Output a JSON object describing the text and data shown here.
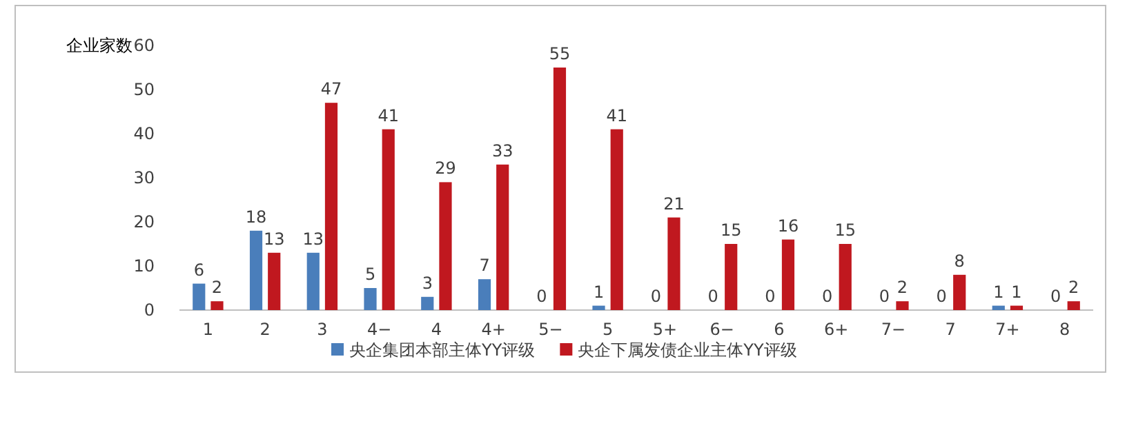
{
  "chart_data": {
    "type": "bar",
    "ylabel": "企业家数",
    "categories": [
      "1",
      "2",
      "3",
      "4−",
      "4",
      "4+",
      "5−",
      "5",
      "5+",
      "6−",
      "6",
      "6+",
      "7−",
      "7",
      "7+",
      "8"
    ],
    "series": [
      {
        "name": "央企集团本部主体YY评级",
        "color": "#4a7ebb",
        "values": [
          6,
          18,
          13,
          5,
          3,
          7,
          0,
          1,
          0,
          0,
          0,
          0,
          0,
          0,
          1,
          0
        ]
      },
      {
        "name": "央企下属发债企业主体YY评级",
        "color": "#c0181f",
        "values": [
          2,
          13,
          47,
          41,
          29,
          33,
          55,
          41,
          21,
          15,
          16,
          15,
          2,
          8,
          1,
          2
        ]
      }
    ],
    "ylim": [
      0,
      60
    ],
    "yticks": [
      0,
      10,
      20,
      30,
      40,
      50,
      60
    ],
    "data_labels": true,
    "legend": "bottom",
    "grid": false
  }
}
